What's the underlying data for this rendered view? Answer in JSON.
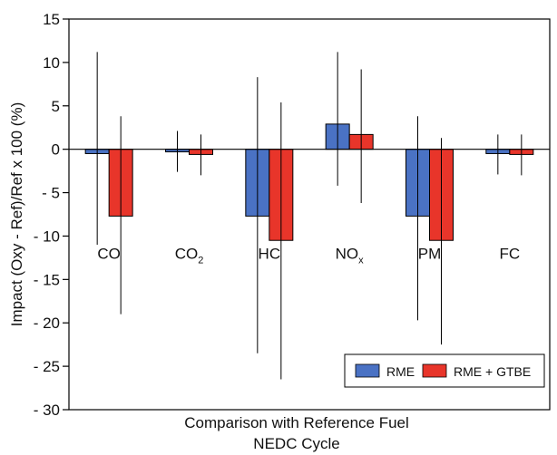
{
  "chart_data": {
    "type": "bar",
    "ylabel": "Impact (Oxy - Ref)/Ref x 100 (%)",
    "xlabel_lines": [
      "Comparison with Reference Fuel",
      "NEDC Cycle"
    ],
    "ylim": [
      -30,
      15
    ],
    "yticks": [
      15,
      10,
      5,
      0,
      -5,
      -10,
      -15,
      -20,
      -25,
      -30
    ],
    "ytick_labels": [
      "15",
      "10",
      "5",
      "0",
      "- 5",
      "- 10",
      "- 15",
      "- 20",
      "- 25",
      "- 30"
    ],
    "categories": [
      {
        "base": "CO",
        "sub": ""
      },
      {
        "base": "CO",
        "sub": "2"
      },
      {
        "base": "HC",
        "sub": ""
      },
      {
        "base": "NO",
        "sub": "x"
      },
      {
        "base": "PM",
        "sub": ""
      },
      {
        "base": "FC",
        "sub": ""
      }
    ],
    "category_label_y": -12,
    "series": [
      {
        "name": "RME",
        "color": "#4a72c4",
        "values": [
          -0.5,
          -0.3,
          -7.7,
          2.9,
          -7.7,
          -0.5
        ],
        "err_high": [
          11.2,
          2.1,
          8.3,
          11.2,
          3.8,
          1.7
        ],
        "err_low": [
          -11.0,
          -2.6,
          -23.5,
          -4.2,
          -19.7,
          -2.9
        ]
      },
      {
        "name": "RME + GTBE",
        "color": "#e8352a",
        "values": [
          -7.7,
          -0.6,
          -10.5,
          1.7,
          -10.5,
          -0.6
        ],
        "err_high": [
          3.8,
          1.7,
          5.4,
          9.2,
          1.3,
          1.7
        ],
        "err_low": [
          -19.0,
          -3.0,
          -26.5,
          -6.2,
          -22.5,
          -3.0
        ]
      }
    ],
    "legend": {
      "placement": "bottom-right"
    },
    "grid": false
  }
}
